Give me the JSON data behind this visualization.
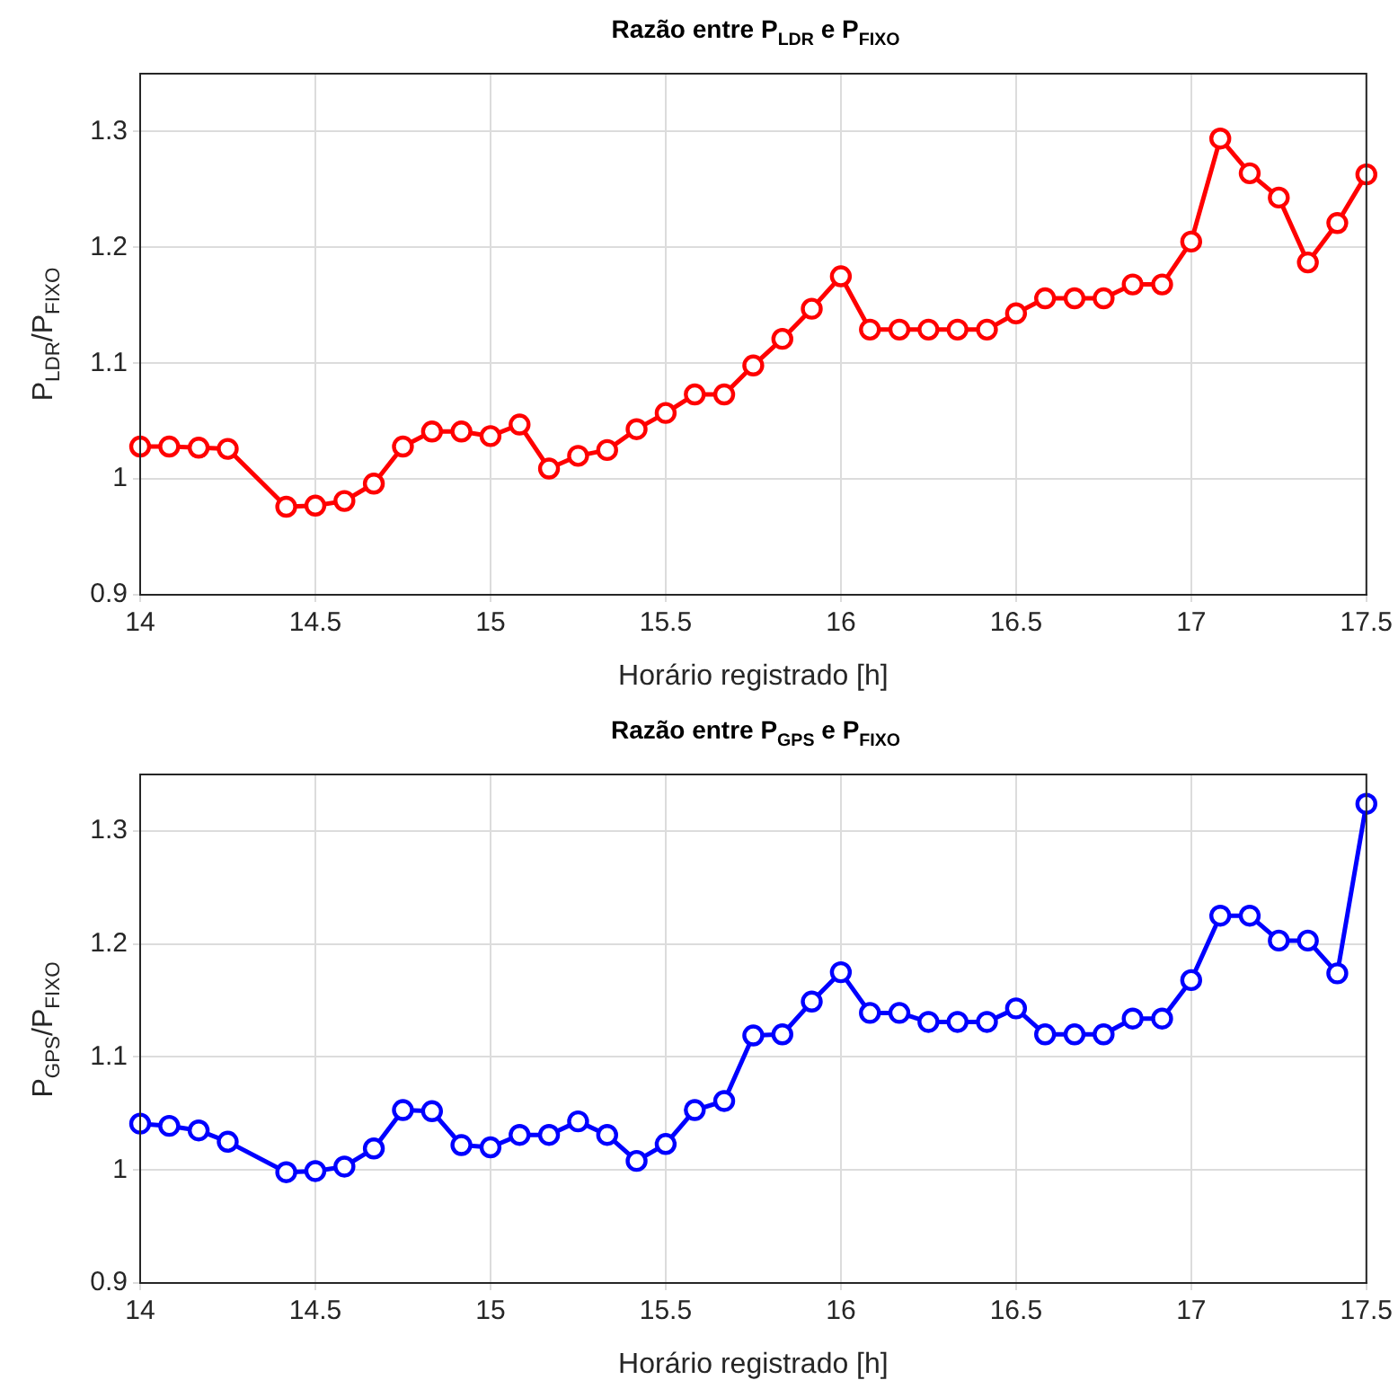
{
  "chart_data": [
    {
      "type": "line",
      "title": "Razão entre P$_{LDR}$ e P$_{FIXO}$",
      "xlabel": "Horário registrado [h]",
      "ylabel": "P$_{LDR}$/P$_{FIXO}$",
      "x": [
        14,
        14.083,
        14.167,
        14.25,
        14.417,
        14.5,
        14.583,
        14.667,
        14.75,
        14.833,
        14.917,
        15,
        15.083,
        15.167,
        15.25,
        15.333,
        15.417,
        15.5,
        15.583,
        15.667,
        15.75,
        15.833,
        15.917,
        16,
        16.083,
        16.167,
        16.25,
        16.333,
        16.417,
        16.5,
        16.583,
        16.667,
        16.75,
        16.833,
        16.917,
        17,
        17.083,
        17.167,
        17.25,
        17.333,
        17.417,
        17.5
      ],
      "series": [
        {
          "color": "#ff0000",
          "values": [
            1.028,
            1.028,
            1.027,
            1.026,
            0.976,
            0.977,
            0.981,
            0.996,
            1.028,
            1.041,
            1.041,
            1.037,
            1.047,
            1.009,
            1.02,
            1.025,
            1.043,
            1.057,
            1.073,
            1.073,
            1.098,
            1.121,
            1.147,
            1.175,
            1.129,
            1.129,
            1.129,
            1.129,
            1.129,
            1.143,
            1.156,
            1.156,
            1.156,
            1.168,
            1.168,
            1.205,
            1.294,
            1.264,
            1.243,
            1.187,
            1.221,
            1.263
          ]
        }
      ],
      "xlim": [
        14,
        17.5
      ],
      "ylim": [
        0.9,
        1.35
      ],
      "xticks": [
        14,
        14.5,
        15,
        15.5,
        16,
        16.5,
        17,
        17.5
      ],
      "yticks": [
        0.9,
        1,
        1.1,
        1.2,
        1.3
      ],
      "grid": true,
      "marker": "circle",
      "line_style": "solid"
    },
    {
      "type": "line",
      "title": "Razão entre P$_{GPS}$ e P$_{FIXO}$",
      "xlabel": "Horário registrado [h]",
      "ylabel": "P$_{GPS}$/P$_{FIXO}$",
      "x": [
        14,
        14.083,
        14.167,
        14.25,
        14.417,
        14.5,
        14.583,
        14.667,
        14.75,
        14.833,
        14.917,
        15,
        15.083,
        15.167,
        15.25,
        15.333,
        15.417,
        15.5,
        15.583,
        15.667,
        15.75,
        15.833,
        15.917,
        16,
        16.083,
        16.167,
        16.25,
        16.333,
        16.417,
        16.5,
        16.583,
        16.667,
        16.75,
        16.833,
        16.917,
        17,
        17.083,
        17.167,
        17.25,
        17.333,
        17.417,
        17.5
      ],
      "series": [
        {
          "color": "#0000ff",
          "values": [
            1.041,
            1.039,
            1.035,
            1.025,
            0.998,
            0.999,
            1.003,
            1.019,
            1.053,
            1.052,
            1.022,
            1.02,
            1.031,
            1.031,
            1.043,
            1.031,
            1.008,
            1.023,
            1.053,
            1.061,
            1.119,
            1.12,
            1.149,
            1.175,
            1.139,
            1.139,
            1.131,
            1.131,
            1.131,
            1.143,
            1.12,
            1.12,
            1.12,
            1.134,
            1.134,
            1.168,
            1.225,
            1.225,
            1.203,
            1.203,
            1.174,
            1.324
          ]
        }
      ],
      "xlim": [
        14,
        17.5
      ],
      "ylim": [
        0.9,
        1.35
      ],
      "xticks": [
        14,
        14.5,
        15,
        15.5,
        16,
        16.5,
        17,
        17.5
      ],
      "yticks": [
        0.9,
        1,
        1.1,
        1.2,
        1.3
      ],
      "grid": true,
      "marker": "circle",
      "line_style": "solid"
    }
  ]
}
